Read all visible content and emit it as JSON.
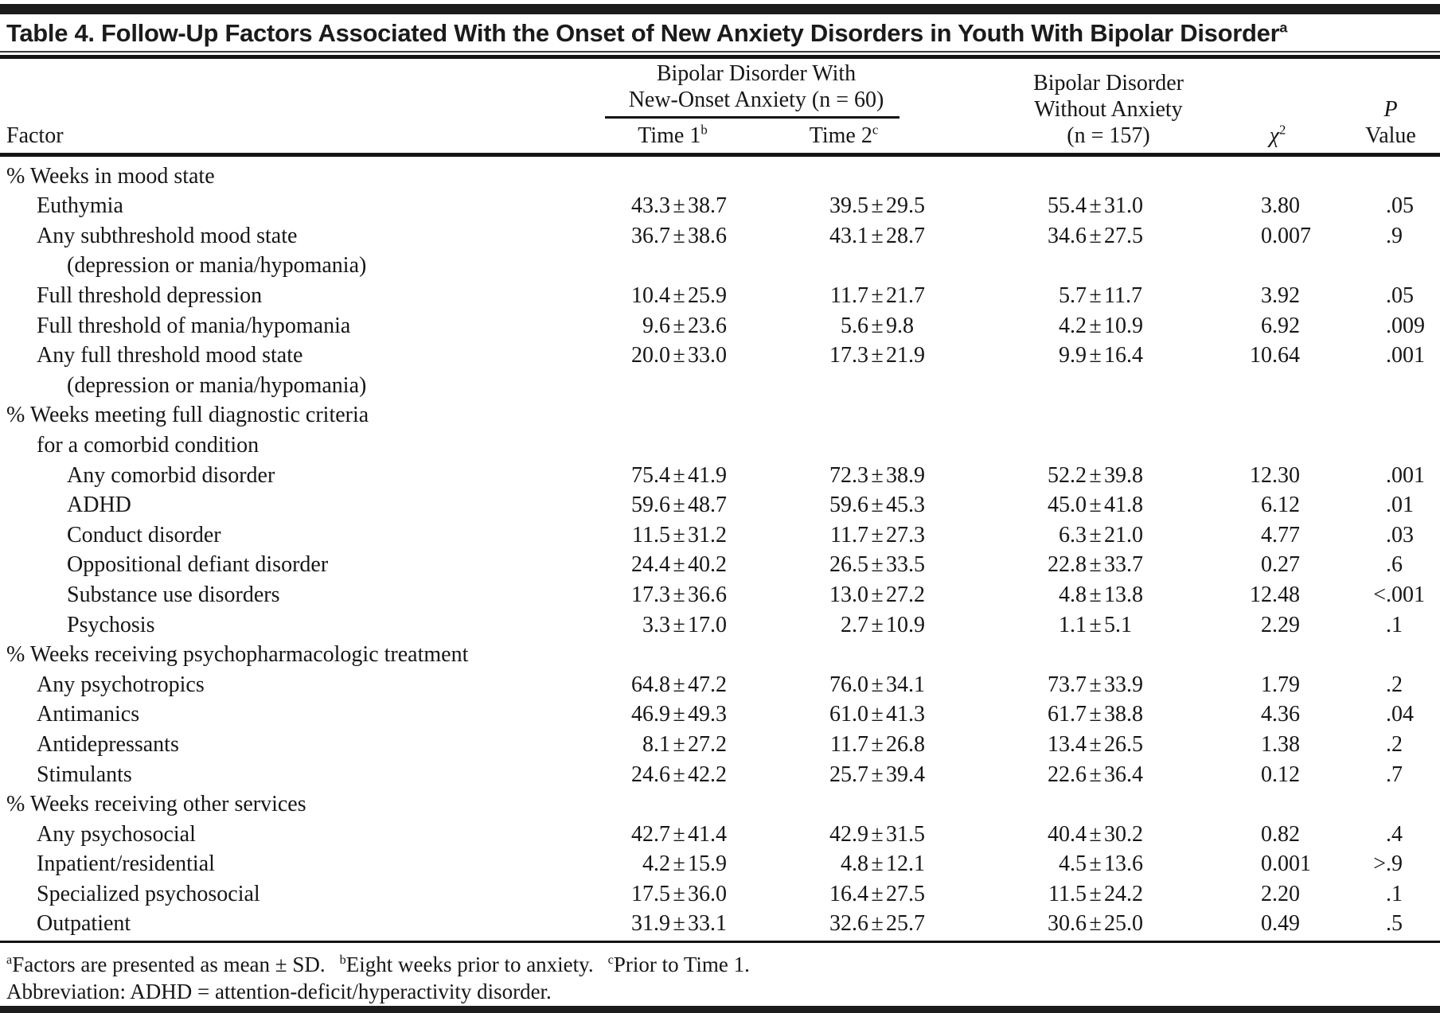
{
  "title": {
    "text": "Table 4. Follow-Up Factors Associated With the Onset of New Anxiety Disorders in Youth With Bipolar Disorder",
    "sup": "a"
  },
  "header": {
    "factor": "Factor",
    "group1_line1": "Bipolar Disorder With",
    "group1_line2": "New-Onset Anxiety (n = 60)",
    "time1": "Time 1",
    "time1_sup": "b",
    "time2": "Time 2",
    "time2_sup": "c",
    "group2_line1": "Bipolar Disorder",
    "group2_line2": "Without Anxiety",
    "group2_line3": "(n = 157)",
    "chi2": "χ",
    "chi2_sup": "2",
    "p_line1": "P",
    "p_line2": "Value"
  },
  "table": {
    "rows": [
      {
        "label": "% Weeks in mood state",
        "indent": 0,
        "values": null
      },
      {
        "label": "Euthymia",
        "indent": 1,
        "values": [
          "43.3±38.7",
          "39.5±29.5",
          "55.4±31.0",
          "3.80",
          ".05"
        ]
      },
      {
        "label": "Any subthreshold mood state",
        "indent": 1,
        "values": [
          "36.7±38.6",
          "43.1±28.7",
          "34.6±27.5",
          "0.007",
          ".9"
        ]
      },
      {
        "label": "(depression or mania/hypomania)",
        "indent": 2,
        "values": null
      },
      {
        "label": "Full threshold depression",
        "indent": 1,
        "values": [
          "10.4±25.9",
          "11.7±21.7",
          "5.7±11.7",
          "3.92",
          ".05"
        ]
      },
      {
        "label": "Full threshold of mania/hypomania",
        "indent": 1,
        "values": [
          "9.6±23.6",
          "5.6±9.8",
          "4.2±10.9",
          "6.92",
          ".009"
        ]
      },
      {
        "label": "Any full threshold mood state",
        "indent": 1,
        "values": [
          "20.0±33.0",
          "17.3±21.9",
          "9.9±16.4",
          "10.64",
          ".001"
        ]
      },
      {
        "label": "(depression or mania/hypomania)",
        "indent": 2,
        "values": null
      },
      {
        "label": "% Weeks meeting full diagnostic criteria",
        "indent": 0,
        "values": null
      },
      {
        "label": "for a comorbid condition",
        "indent": 1,
        "values": null
      },
      {
        "label": "Any comorbid disorder",
        "indent": 2,
        "values": [
          "75.4±41.9",
          "72.3±38.9",
          "52.2±39.8",
          "12.30",
          ".001"
        ]
      },
      {
        "label": "ADHD",
        "indent": 2,
        "values": [
          "59.6±48.7",
          "59.6±45.3",
          "45.0±41.8",
          "6.12",
          ".01"
        ]
      },
      {
        "label": "Conduct disorder",
        "indent": 2,
        "values": [
          "11.5±31.2",
          "11.7±27.3",
          "6.3±21.0",
          "4.77",
          ".03"
        ]
      },
      {
        "label": "Oppositional defiant disorder",
        "indent": 2,
        "values": [
          "24.4±40.2",
          "26.5±33.5",
          "22.8±33.7",
          "0.27",
          ".6"
        ]
      },
      {
        "label": "Substance use disorders",
        "indent": 2,
        "values": [
          "17.3±36.6",
          "13.0±27.2",
          "4.8±13.8",
          "12.48",
          "<.001"
        ]
      },
      {
        "label": "Psychosis",
        "indent": 2,
        "values": [
          "3.3±17.0",
          "2.7±10.9",
          "1.1±5.1",
          "2.29",
          ".1"
        ]
      },
      {
        "label": "% Weeks receiving psychopharmacologic treatment",
        "indent": 0,
        "values": null
      },
      {
        "label": "Any psychotropics",
        "indent": 1,
        "values": [
          "64.8±47.2",
          "76.0±34.1",
          "73.7±33.9",
          "1.79",
          ".2"
        ]
      },
      {
        "label": "Antimanics",
        "indent": 1,
        "values": [
          "46.9±49.3",
          "61.0±41.3",
          "61.7±38.8",
          "4.36",
          ".04"
        ]
      },
      {
        "label": "Antidepressants",
        "indent": 1,
        "values": [
          "8.1±27.2",
          "11.7±26.8",
          "13.4±26.5",
          "1.38",
          ".2"
        ]
      },
      {
        "label": "Stimulants",
        "indent": 1,
        "values": [
          "24.6±42.2",
          "25.7±39.4",
          "22.6±36.4",
          "0.12",
          ".7"
        ]
      },
      {
        "label": "% Weeks receiving other services",
        "indent": 0,
        "values": null
      },
      {
        "label": "Any psychosocial",
        "indent": 1,
        "values": [
          "42.7±41.4",
          "42.9±31.5",
          "40.4±30.2",
          "0.82",
          ".4"
        ]
      },
      {
        "label": "Inpatient/residential",
        "indent": 1,
        "values": [
          "4.2±15.9",
          "4.8±12.1",
          "4.5±13.6",
          "0.001",
          ">.9"
        ]
      },
      {
        "label": "Specialized psychosocial",
        "indent": 1,
        "values": [
          "17.5±36.0",
          "16.4±27.5",
          "11.5±24.2",
          "2.20",
          ".1"
        ]
      },
      {
        "label": "Outpatient",
        "indent": 1,
        "values": [
          "31.9±33.1",
          "32.6±25.7",
          "30.6±25.0",
          "0.49",
          ".5"
        ]
      }
    ]
  },
  "footnotes": {
    "line1": [
      {
        "sup": "a",
        "text": "Factors are presented as mean ± SD."
      },
      {
        "sup": "b",
        "text": "Eight weeks prior to anxiety."
      },
      {
        "sup": "c",
        "text": "Prior to Time 1."
      }
    ],
    "line2": "Abbreviation: ADHD = attention-deficit/hyperactivity disorder."
  }
}
